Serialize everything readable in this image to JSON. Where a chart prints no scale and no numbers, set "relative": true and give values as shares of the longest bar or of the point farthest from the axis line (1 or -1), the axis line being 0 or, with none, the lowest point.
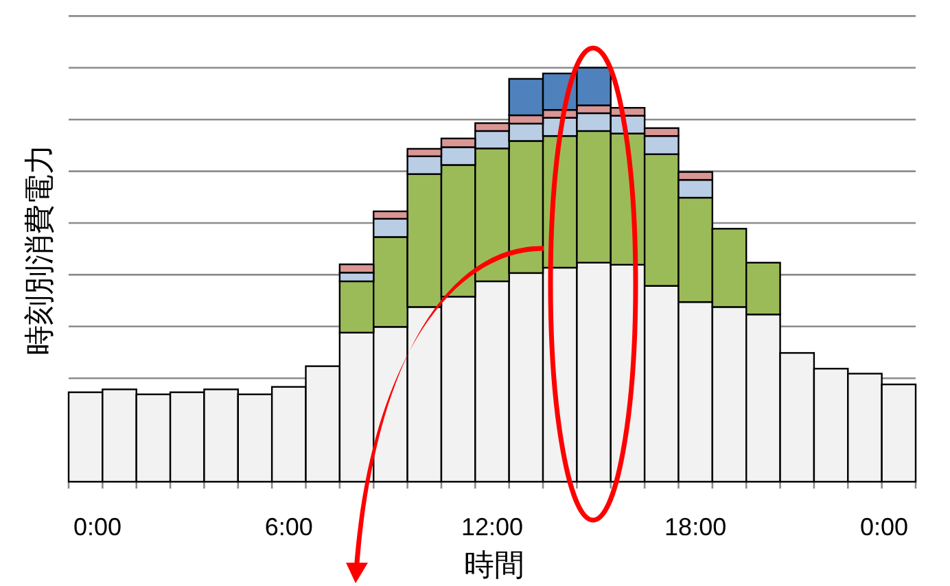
{
  "chart_data": {
    "type": "bar",
    "stacked": true,
    "relative": true,
    "grid": "y",
    "xlabel": "時間",
    "ylabel": "時刻別消費電力",
    "categories": [
      "0:00",
      null,
      null,
      null,
      null,
      null,
      "6:00",
      null,
      null,
      null,
      null,
      null,
      "12:00",
      null,
      null,
      null,
      null,
      null,
      "18:00",
      null,
      null,
      null,
      null,
      null,
      "0:00"
    ],
    "series": [
      {
        "color": "#f2f2f2",
        "values": [
          0.216,
          0.223,
          0.211,
          0.216,
          0.223,
          0.211,
          0.229,
          0.279,
          0.36,
          0.374,
          0.422,
          0.447,
          0.484,
          0.504,
          0.517,
          0.529,
          0.524,
          0.473,
          0.434,
          0.422,
          0.404,
          0.311,
          0.273,
          0.261,
          0.235
        ]
      },
      {
        "color": "#9bbb59",
        "values": [
          null,
          null,
          null,
          null,
          null,
          null,
          null,
          null,
          0.124,
          0.217,
          0.321,
          0.318,
          0.321,
          0.319,
          0.318,
          0.318,
          0.317,
          0.318,
          0.252,
          0.189,
          0.125,
          null,
          null,
          null,
          null
        ]
      },
      {
        "color": "#b9cde5",
        "values": [
          null,
          null,
          null,
          null,
          null,
          null,
          null,
          null,
          0.021,
          0.044,
          0.043,
          0.043,
          0.042,
          0.042,
          0.044,
          0.043,
          0.043,
          0.044,
          0.043,
          null,
          null,
          null,
          null,
          null,
          null
        ]
      },
      {
        "color": "#d99694",
        "values": [
          null,
          null,
          null,
          null,
          null,
          null,
          null,
          null,
          0.02,
          0.018,
          0.018,
          0.021,
          0.019,
          0.02,
          0.019,
          0.019,
          0.019,
          0.019,
          0.019,
          null,
          null,
          null,
          null,
          null,
          null
        ]
      },
      {
        "color": "#4f81bd",
        "values": [
          null,
          null,
          null,
          null,
          null,
          null,
          null,
          null,
          null,
          null,
          null,
          null,
          null,
          0.088,
          0.088,
          0.091,
          null,
          null,
          null,
          null,
          null,
          null,
          null,
          null,
          null
        ]
      }
    ]
  }
}
